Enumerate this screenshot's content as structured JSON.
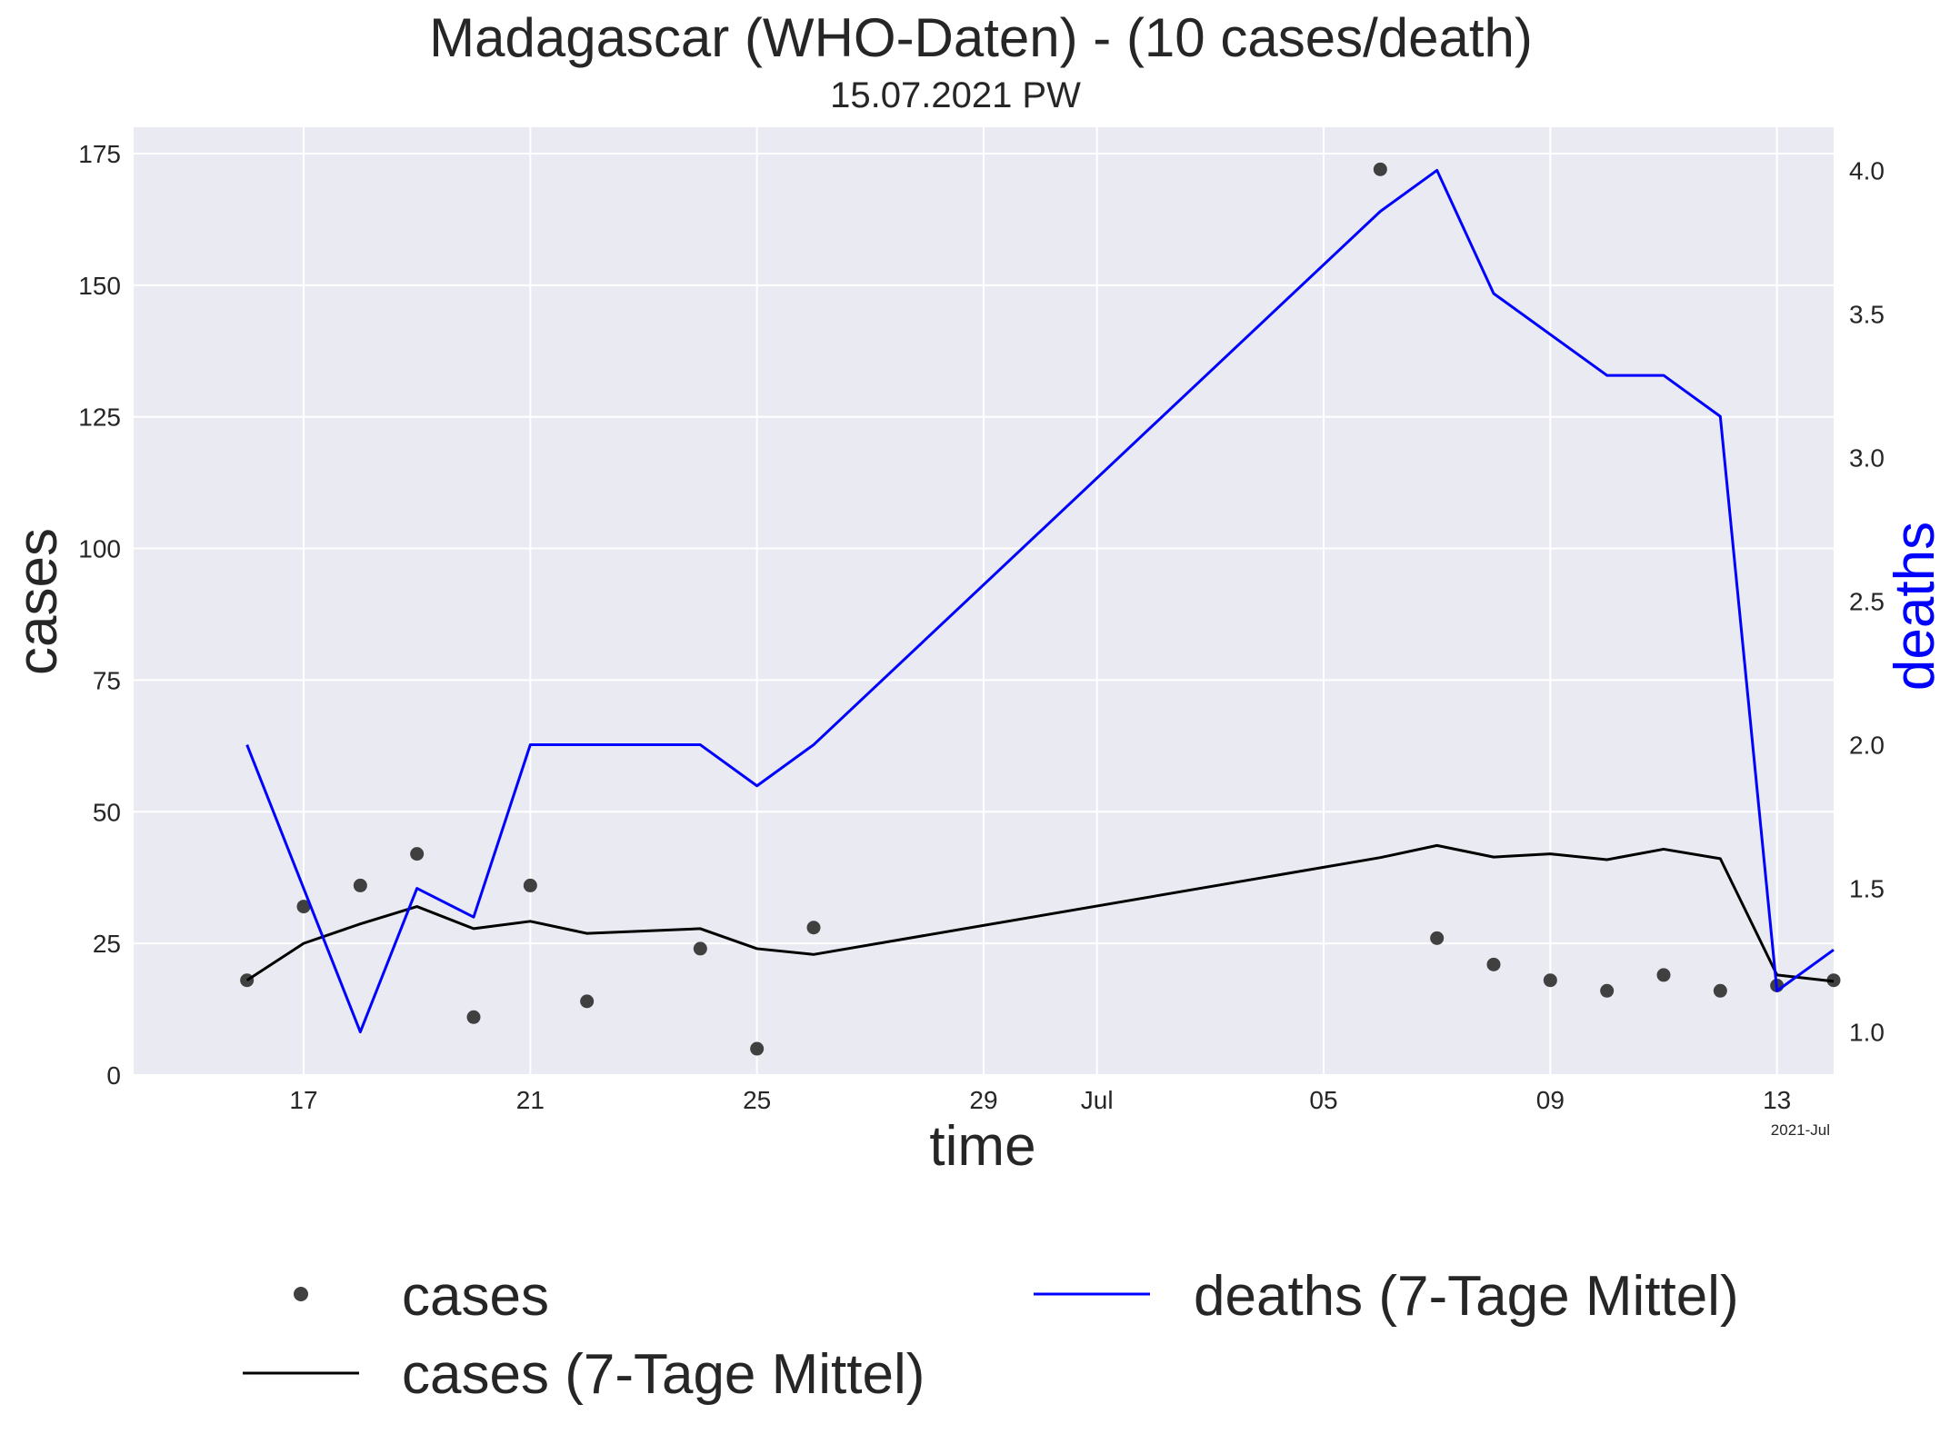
{
  "chart_data": {
    "type": "line",
    "title": "Madagascar (WHO-Daten) - (10 cases/death)",
    "subtitle": "15.07.2021 PW",
    "xlabel": "time",
    "ylabel": "cases",
    "y2label": "deaths",
    "x_offset_label": "2021-Jul",
    "xlim": [
      "2021-06-14",
      "2021-07-14"
    ],
    "ylim": [
      0,
      180
    ],
    "y2lim": [
      0.85,
      4.15
    ],
    "x_ticks": [
      {
        "date": "2021-06-17",
        "label": "17"
      },
      {
        "date": "2021-06-21",
        "label": "21"
      },
      {
        "date": "2021-06-25",
        "label": "25"
      },
      {
        "date": "2021-06-29",
        "label": "29"
      },
      {
        "date": "2021-07-01",
        "label": "Jul"
      },
      {
        "date": "2021-07-05",
        "label": "05"
      },
      {
        "date": "2021-07-09",
        "label": "09"
      },
      {
        "date": "2021-07-13",
        "label": "13"
      }
    ],
    "y_ticks": [
      0,
      25,
      50,
      75,
      100,
      125,
      150,
      175
    ],
    "y2_ticks": [
      {
        "value": 1.0,
        "label": "1.0"
      },
      {
        "value": 1.5,
        "label": "1.5"
      },
      {
        "value": 2.0,
        "label": "2.0"
      },
      {
        "value": 2.5,
        "label": "2.5"
      },
      {
        "value": 3.0,
        "label": "3.0"
      },
      {
        "value": 3.5,
        "label": "3.5"
      },
      {
        "value": 4.0,
        "label": "4.0"
      }
    ],
    "grid": true,
    "legend_position": "below the plot",
    "series": [
      {
        "name": "cases",
        "type": "scatter",
        "axis": "left",
        "color": "#404040",
        "x": [
          "2021-06-16",
          "2021-06-17",
          "2021-06-18",
          "2021-06-19",
          "2021-06-20",
          "2021-06-21",
          "2021-06-22",
          "2021-06-24",
          "2021-06-25",
          "2021-06-26",
          "2021-07-06",
          "2021-07-07",
          "2021-07-08",
          "2021-07-09",
          "2021-07-10",
          "2021-07-11",
          "2021-07-12",
          "2021-07-13",
          "2021-07-14"
        ],
        "values": [
          18,
          32,
          36,
          42,
          11,
          36,
          14,
          24,
          5,
          28,
          172,
          26,
          21,
          18,
          16,
          19,
          16,
          17,
          18
        ]
      },
      {
        "name": "cases (7-Tage Mittel)",
        "type": "line",
        "axis": "left",
        "color": "#000000",
        "x": [
          "2021-06-16",
          "2021-06-17",
          "2021-06-18",
          "2021-06-19",
          "2021-06-20",
          "2021-06-21",
          "2021-06-22",
          "2021-06-24",
          "2021-06-25",
          "2021-06-26",
          "2021-07-06",
          "2021-07-07",
          "2021-07-08",
          "2021-07-09",
          "2021-07-10",
          "2021-07-11",
          "2021-07-12",
          "2021-07-13",
          "2021-07-14"
        ],
        "values": [
          18,
          25,
          28.7,
          32,
          27.8,
          29.2,
          26.9,
          27.8,
          24,
          22.9,
          41.3,
          43.6,
          41.4,
          42,
          40.9,
          42.9,
          41.1,
          19,
          17.8
        ]
      },
      {
        "name": "deaths (7-Tage Mittel)",
        "type": "line",
        "axis": "right",
        "color": "#0000ff",
        "x": [
          "2021-06-16",
          "2021-06-18",
          "2021-06-19",
          "2021-06-20",
          "2021-06-21",
          "2021-06-24",
          "2021-06-25",
          "2021-06-26",
          "2021-07-06",
          "2021-07-07",
          "2021-07-08",
          "2021-07-10",
          "2021-07-11",
          "2021-07-12",
          "2021-07-13",
          "2021-07-14"
        ],
        "values": [
          2.0,
          1.0,
          1.5,
          1.4,
          2.0,
          2.0,
          1.857,
          2.0,
          3.857,
          4.0,
          3.571,
          3.286,
          3.286,
          3.143,
          1.143,
          1.286
        ]
      }
    ]
  }
}
